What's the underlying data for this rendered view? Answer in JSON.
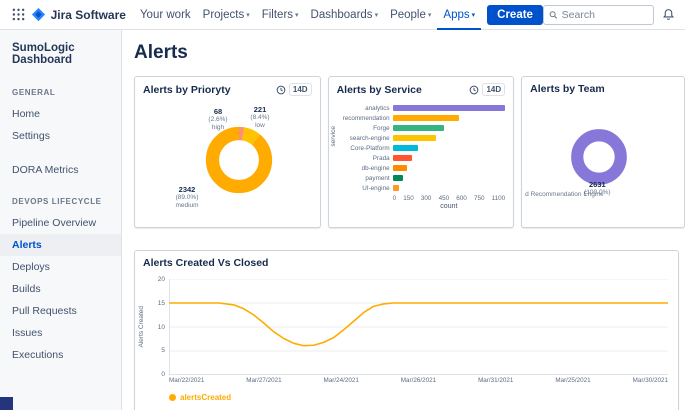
{
  "colors": {
    "accent": "#0052CC",
    "text_dark": "#172B4D",
    "text_gray": "#6B778C",
    "border": "#DFE1E6",
    "corner_square": "#24357E",
    "line_series": "#FFAB00"
  },
  "topbar": {
    "app_name": "Jira Software",
    "nav_items": [
      {
        "label": "Your work",
        "caret": false,
        "active": false
      },
      {
        "label": "Projects",
        "caret": true,
        "active": false
      },
      {
        "label": "Filters",
        "caret": true,
        "active": false
      },
      {
        "label": "Dashboards",
        "caret": true,
        "active": false
      },
      {
        "label": "People",
        "caret": true,
        "active": false
      },
      {
        "label": "Apps",
        "caret": true,
        "active": true
      }
    ],
    "create_label": "Create",
    "search_placeholder": "Search"
  },
  "sidebar": {
    "title": "SumoLogic Dashboard",
    "sections": [
      {
        "header": "GENERAL",
        "items": [
          {
            "label": "Home",
            "active": false
          },
          {
            "label": "Settings",
            "active": false
          }
        ]
      },
      {
        "header": "",
        "items": [
          {
            "label": "DORA Metrics",
            "active": false
          }
        ]
      },
      {
        "header": "DEVOPS LIFECYCLE",
        "items": [
          {
            "label": "Pipeline Overview",
            "active": false
          },
          {
            "label": "Alerts",
            "active": true
          },
          {
            "label": "Deploys",
            "active": false
          },
          {
            "label": "Builds",
            "active": false
          },
          {
            "label": "Pull Requests",
            "active": false
          },
          {
            "label": "Issues",
            "active": false
          },
          {
            "label": "Executions",
            "active": false
          }
        ]
      }
    ]
  },
  "page_title": "Alerts",
  "cards": {
    "priority": {
      "title": "Alerts by Prioryty",
      "badge": "14D"
    },
    "service": {
      "title": "Alerts by Service",
      "badge": "14D"
    },
    "team": {
      "title": "Alerts by Team"
    },
    "created_vs_closed": {
      "title": "Alerts Created Vs Closed"
    }
  },
  "chart_data": {
    "priority": {
      "type": "donut",
      "segments": [
        {
          "label": "high",
          "value": 68,
          "pct": "(2.6%)",
          "color": "#FF8F73"
        },
        {
          "label": "low",
          "value": 221,
          "pct": "(8.4%)",
          "color": "#FFC400"
        },
        {
          "label": "medium",
          "value": 2342,
          "pct": "(89.0%)",
          "color": "#FFAB00"
        }
      ]
    },
    "service": {
      "type": "bar",
      "orientation": "horizontal",
      "categories": [
        "analytics",
        "recommendation",
        "Forge",
        "search-engine",
        "Core-Platform",
        "Prada",
        "db-engine",
        "payment",
        "UI-engine"
      ],
      "values": [
        1100,
        650,
        500,
        420,
        250,
        190,
        145,
        100,
        60
      ],
      "colors": [
        "#8777D9",
        "#FFAB00",
        "#36B37E",
        "#FFC400",
        "#00B8D9",
        "#FF5630",
        "#FF8B00",
        "#00875A",
        "#FF991F"
      ],
      "xticks": [
        "0",
        "150",
        "300",
        "450",
        "600",
        "750",
        "1100"
      ],
      "xmax": 1100,
      "xlabel": "count",
      "ylabel": "service"
    },
    "team": {
      "type": "donut",
      "segments": [
        {
          "label": "d Recommendation Engine",
          "value": 2631,
          "pct": "(100.0%)",
          "color": "#8777D9"
        }
      ]
    },
    "created_vs_closed": {
      "type": "line",
      "ylabel": "Alerts Created",
      "yticks": [
        20,
        15,
        10,
        5,
        0
      ],
      "ymax": 20,
      "xticklabels": [
        "Mar/22/2021",
        "Mar/27/2021",
        "Mar/24/2021",
        "Mar/26/2021",
        "Mar/31/2021",
        "Mar/25/2021",
        "Mar/30/2021"
      ],
      "series": [
        {
          "name": "alertsCreated",
          "color": "#FFAB00",
          "points": [
            [
              0,
              15
            ],
            [
              10,
              15
            ],
            [
              13,
              14.6
            ],
            [
              15,
              13.8
            ],
            [
              17,
              12.5
            ],
            [
              19,
              10.8
            ],
            [
              21,
              9
            ],
            [
              23,
              7.6
            ],
            [
              25,
              6.6
            ],
            [
              27,
              6.1
            ],
            [
              29,
              6.2
            ],
            [
              31,
              6.8
            ],
            [
              33,
              7.8
            ],
            [
              35,
              9.4
            ],
            [
              37,
              11.2
            ],
            [
              39,
              13
            ],
            [
              41,
              14.3
            ],
            [
              43,
              14.8
            ],
            [
              45,
              15
            ],
            [
              100,
              15
            ]
          ]
        }
      ],
      "legend": [
        {
          "label": "alertsCreated",
          "color": "#FFAB00"
        }
      ]
    }
  }
}
